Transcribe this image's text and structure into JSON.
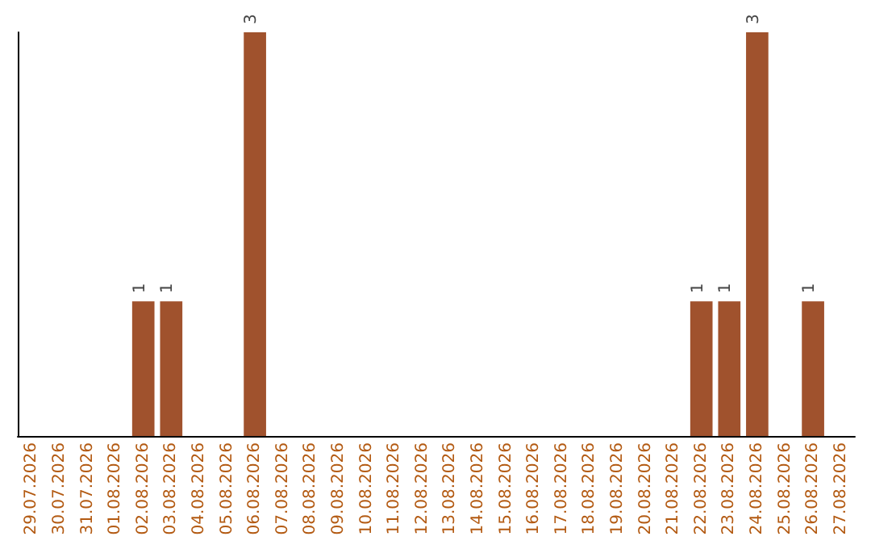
{
  "chart_data": {
    "type": "bar",
    "categories": [
      "29.07.2026",
      "30.07.2026",
      "31.07.2026",
      "01.08.2026",
      "02.08.2026",
      "03.08.2026",
      "04.08.2026",
      "05.08.2026",
      "06.08.2026",
      "07.08.2026",
      "08.08.2026",
      "09.08.2026",
      "10.08.2026",
      "11.08.2026",
      "12.08.2026",
      "13.08.2026",
      "14.08.2026",
      "15.08.2026",
      "16.08.2026",
      "17.08.2026",
      "18.08.2026",
      "19.08.2026",
      "20.08.2026",
      "21.08.2026",
      "22.08.2026",
      "23.08.2026",
      "24.08.2026",
      "25.08.2026",
      "26.08.2026",
      "27.08.2026"
    ],
    "values": [
      0,
      0,
      0,
      0,
      1,
      1,
      0,
      0,
      3,
      0,
      0,
      0,
      0,
      0,
      0,
      0,
      0,
      0,
      0,
      0,
      0,
      0,
      0,
      0,
      1,
      1,
      3,
      0,
      1,
      0
    ],
    "value_labels": [
      null,
      null,
      null,
      null,
      "1",
      "1",
      null,
      null,
      "3",
      null,
      null,
      null,
      null,
      null,
      null,
      null,
      null,
      null,
      null,
      null,
      null,
      null,
      null,
      null,
      "1",
      "1",
      "3",
      null,
      "1",
      null
    ],
    "color": "#a0522d",
    "ylim": [
      0,
      3
    ],
    "tick_labels": "x",
    "grid": false
  }
}
